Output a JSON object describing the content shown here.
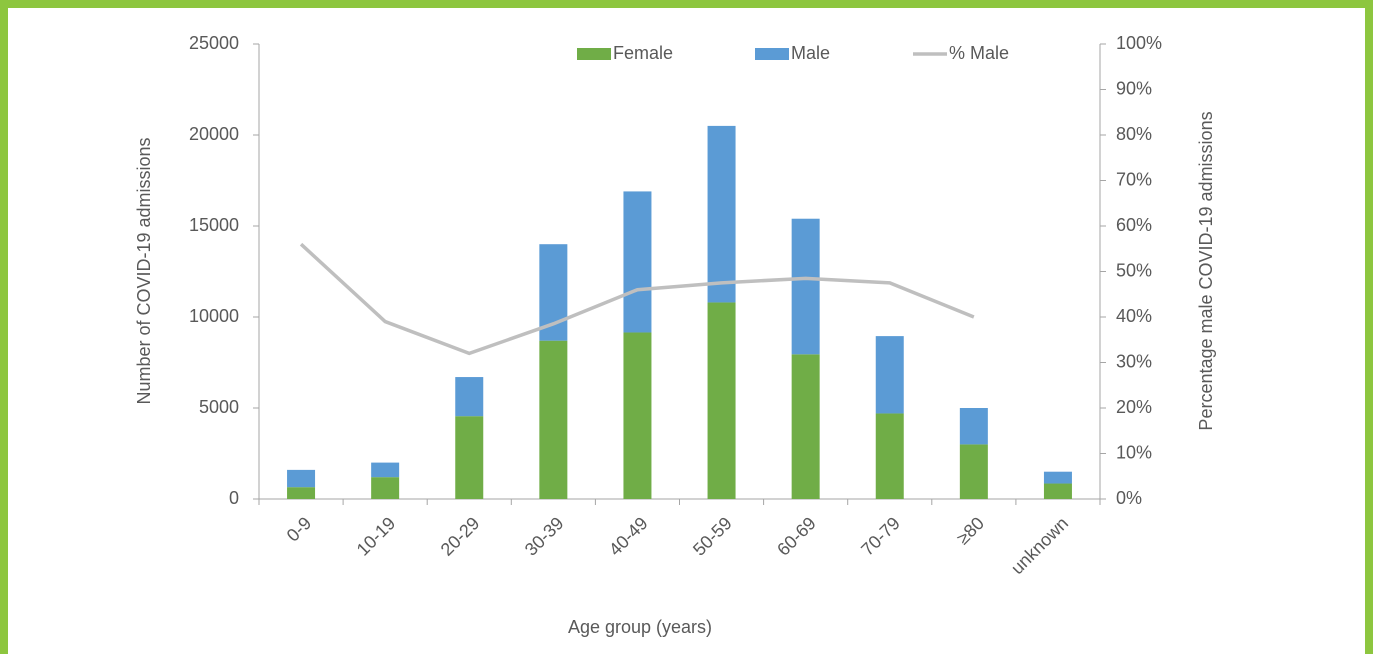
{
  "chart_data": {
    "type": "bar",
    "stacked": true,
    "x_label": "Age group (years)",
    "y_label": "Number of COVID-19 admissions",
    "y2_label": "Percentage male COVID-19 admissions",
    "categories": [
      "0-9",
      "10-19",
      "20-29",
      "30-39",
      "40-49",
      "50-59",
      "60-69",
      "70-79",
      "≥80",
      "unknown"
    ],
    "series": [
      {
        "name": "Female",
        "color": "#70ad47",
        "values": [
          650,
          1200,
          4550,
          8700,
          9150,
          10800,
          7950,
          4700,
          3000,
          850
        ]
      },
      {
        "name": "Male",
        "color": "#5b9bd5",
        "values": [
          950,
          800,
          2150,
          5300,
          7750,
          9700,
          7450,
          4250,
          2000,
          650
        ]
      },
      {
        "name": "% Male",
        "type": "line",
        "axis": "y2",
        "color": "#bfbfbf",
        "values": [
          56,
          39,
          32,
          38.5,
          46,
          47.5,
          48.5,
          47.5,
          40,
          null
        ]
      }
    ],
    "ylim": [
      0,
      25000
    ],
    "yticks": [
      0,
      5000,
      10000,
      15000,
      20000,
      25000
    ],
    "y2lim": [
      0,
      100
    ],
    "y2ticks": [
      {
        "value": 0,
        "label": "0%"
      },
      {
        "value": 10,
        "label": "10%"
      },
      {
        "value": 20,
        "label": "20%"
      },
      {
        "value": 30,
        "label": "30%"
      },
      {
        "value": 40,
        "label": "40%"
      },
      {
        "value": 50,
        "label": "50%"
      },
      {
        "value": 60,
        "label": "60%"
      },
      {
        "value": 70,
        "label": "70%"
      },
      {
        "value": 80,
        "label": "80%"
      },
      {
        "value": 90,
        "label": "90%"
      },
      {
        "value": 100,
        "label": "100%"
      }
    ],
    "grid": false,
    "legend": "top"
  }
}
